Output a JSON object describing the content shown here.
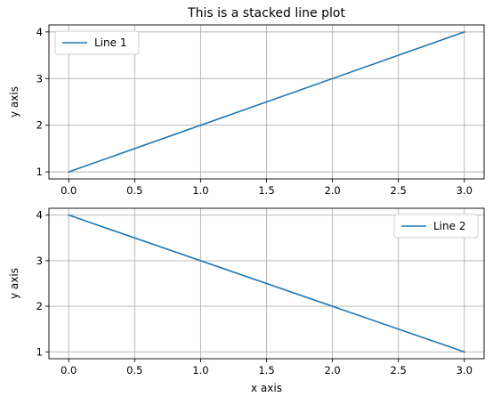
{
  "chart_data": [
    {
      "type": "line",
      "title": "This is a stacked line plot",
      "xlabel": "",
      "ylabel": "y axis",
      "x": [
        0,
        3
      ],
      "series": [
        {
          "name": "Line 1",
          "values": [
            1,
            4
          ],
          "color": "#1f77b4"
        }
      ],
      "xlim": [
        -0.15,
        3.15
      ],
      "ylim": [
        0.85,
        4.15
      ],
      "xticks": [
        "0.0",
        "0.5",
        "1.0",
        "1.5",
        "2.0",
        "2.5",
        "3.0"
      ],
      "yticks": [
        "1",
        "2",
        "3",
        "4"
      ],
      "grid": true,
      "legend": "top-left"
    },
    {
      "type": "line",
      "title": "",
      "xlabel": "x axis",
      "ylabel": "y axis",
      "x": [
        0,
        3
      ],
      "series": [
        {
          "name": "Line 2",
          "values": [
            4,
            1
          ],
          "color": "#1f77b4"
        }
      ],
      "xlim": [
        -0.15,
        3.15
      ],
      "ylim": [
        0.85,
        4.15
      ],
      "xticks": [
        "0.0",
        "0.5",
        "1.0",
        "1.5",
        "2.0",
        "2.5",
        "3.0"
      ],
      "yticks": [
        "1",
        "2",
        "3",
        "4"
      ],
      "grid": true,
      "legend": "top-right"
    }
  ]
}
